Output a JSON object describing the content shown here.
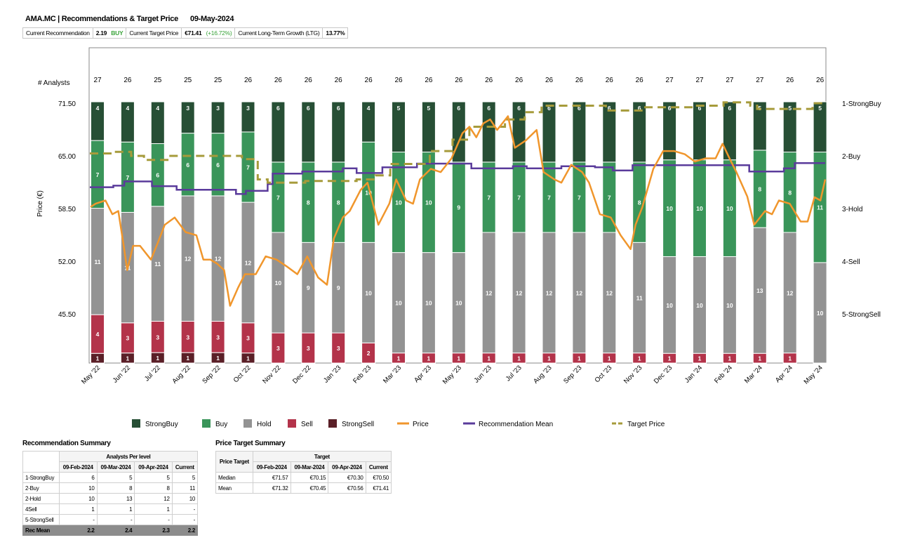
{
  "header": {
    "title": "AMA.MC | Recommendations & Target Price",
    "date": "09-May-2024",
    "current_recommendation_label": "Current Recommendation",
    "current_recommendation_value": "2.19",
    "current_recommendation_text": "BUY",
    "current_target_label": "Current Target Price",
    "current_target_value": "€71.41",
    "current_target_change": "(+16.72%)",
    "ltg_label": "Current Long-Term Growth (LTG)",
    "ltg_value": "13.77%"
  },
  "chart_data": {
    "type": "bar",
    "stacked": "100%",
    "analysts_label": "# Analysts",
    "ylabel": "Price (€)",
    "y_ticks": [
      "71.50",
      "65.00",
      "58.50",
      "52.00",
      "45.50"
    ],
    "ylim_price": [
      39.35,
      78.35
    ],
    "right_ticks": [
      "1-StrongBuy",
      "2-Buy",
      "3-Hold",
      "4-Sell",
      "5-StrongSell"
    ],
    "categories": [
      "May '22",
      "Jun '22",
      "Jul '22",
      "Aug '22",
      "Sep '22",
      "Oct '22",
      "Nov '22",
      "Dec '22",
      "Jan '23",
      "Feb '23",
      "Mar '23",
      "Apr '23",
      "May '23",
      "Jun '23",
      "Jul '23",
      "Aug '23",
      "Sep '23",
      "Oct '23",
      "Nov '23",
      "Dec '23",
      "Jan '24",
      "Feb '24",
      "Mar '24",
      "Apr '24",
      "May '24"
    ],
    "analyst_counts": [
      27,
      26,
      25,
      25,
      25,
      26,
      26,
      26,
      26,
      26,
      26,
      26,
      26,
      26,
      26,
      26,
      26,
      26,
      26,
      27,
      27,
      27,
      27,
      26,
      26
    ],
    "series": [
      {
        "name": "StrongBuy",
        "color": "#274f35",
        "values": [
          4,
          4,
          4,
          3,
          3,
          3,
          6,
          6,
          6,
          4,
          5,
          5,
          6,
          6,
          6,
          6,
          6,
          6,
          6,
          6,
          6,
          6,
          5,
          5,
          5
        ]
      },
      {
        "name": "Buy",
        "color": "#3a955a",
        "values": [
          7,
          7,
          6,
          6,
          6,
          7,
          7,
          8,
          8,
          10,
          10,
          10,
          9,
          7,
          7,
          7,
          7,
          7,
          8,
          10,
          10,
          10,
          8,
          8,
          11
        ]
      },
      {
        "name": "Hold",
        "color": "#939393",
        "values": [
          11,
          11,
          11,
          12,
          12,
          12,
          10,
          9,
          9,
          10,
          10,
          10,
          10,
          12,
          12,
          12,
          12,
          12,
          11,
          10,
          10,
          10,
          13,
          12,
          10
        ]
      },
      {
        "name": "Sell",
        "color": "#b3334a",
        "values": [
          4,
          3,
          3,
          3,
          3,
          3,
          3,
          3,
          3,
          2,
          1,
          1,
          1,
          1,
          1,
          1,
          1,
          1,
          1,
          1,
          1,
          1,
          1,
          1,
          0
        ]
      },
      {
        "name": "StrongSell",
        "color": "#5a1f27",
        "values": [
          1,
          1,
          1,
          1,
          1,
          1,
          0,
          0,
          0,
          0,
          0,
          0,
          0,
          0,
          0,
          0,
          0,
          0,
          0,
          0,
          0,
          0,
          0,
          0,
          0
        ]
      }
    ],
    "lines": {
      "price": {
        "name": "Price",
        "color": "#f0962c",
        "points": [
          [
            "2022-05-02",
            58.7
          ],
          [
            "2022-05-07",
            59.1
          ],
          [
            "2022-05-17",
            59.5
          ],
          [
            "2022-05-24",
            57.8
          ],
          [
            "2022-05-30",
            58.2
          ],
          [
            "2022-06-04",
            54.3
          ],
          [
            "2022-06-08",
            50.9
          ],
          [
            "2022-06-14",
            53.9
          ],
          [
            "2022-06-21",
            53.9
          ],
          [
            "2022-07-02",
            52.2
          ],
          [
            "2022-07-09",
            54.3
          ],
          [
            "2022-07-16",
            56.5
          ],
          [
            "2022-07-26",
            57.4
          ],
          [
            "2022-08-06",
            55.6
          ],
          [
            "2022-08-17",
            55.2
          ],
          [
            "2022-08-24",
            52.2
          ],
          [
            "2022-08-31",
            52.2
          ],
          [
            "2022-09-07",
            51.7
          ],
          [
            "2022-09-14",
            50.9
          ],
          [
            "2022-09-20",
            46.5
          ],
          [
            "2022-09-28",
            48.7
          ],
          [
            "2022-10-05",
            50.4
          ],
          [
            "2022-10-16",
            50.4
          ],
          [
            "2022-10-26",
            52.6
          ],
          [
            "2022-11-06",
            52.2
          ],
          [
            "2022-11-17",
            51.3
          ],
          [
            "2022-11-27",
            50.4
          ],
          [
            "2022-12-07",
            52.6
          ],
          [
            "2022-12-18",
            50.0
          ],
          [
            "2022-12-27",
            49.1
          ],
          [
            "2023-01-03",
            54.8
          ],
          [
            "2023-01-12",
            57.4
          ],
          [
            "2023-01-19",
            58.2
          ],
          [
            "2023-01-30",
            60.8
          ],
          [
            "2023-02-06",
            61.7
          ],
          [
            "2023-02-17",
            56.5
          ],
          [
            "2023-02-28",
            59.1
          ],
          [
            "2023-03-07",
            62.1
          ],
          [
            "2023-03-17",
            59.5
          ],
          [
            "2023-03-24",
            59.1
          ],
          [
            "2023-03-31",
            62.1
          ],
          [
            "2023-04-11",
            63.4
          ],
          [
            "2023-04-21",
            63.0
          ],
          [
            "2023-05-02",
            64.7
          ],
          [
            "2023-05-13",
            67.8
          ],
          [
            "2023-05-20",
            68.6
          ],
          [
            "2023-05-27",
            67.3
          ],
          [
            "2023-06-03",
            69.0
          ],
          [
            "2023-06-10",
            69.5
          ],
          [
            "2023-06-17",
            68.2
          ],
          [
            "2023-06-28",
            69.9
          ],
          [
            "2023-07-05",
            66.0
          ],
          [
            "2023-07-16",
            66.9
          ],
          [
            "2023-07-27",
            68.2
          ],
          [
            "2023-08-03",
            63.0
          ],
          [
            "2023-08-14",
            62.1
          ],
          [
            "2023-08-21",
            61.7
          ],
          [
            "2023-08-31",
            63.9
          ],
          [
            "2023-09-11",
            63.0
          ],
          [
            "2023-09-18",
            61.7
          ],
          [
            "2023-09-29",
            57.8
          ],
          [
            "2023-10-10",
            57.4
          ],
          [
            "2023-10-20",
            55.2
          ],
          [
            "2023-10-30",
            53.5
          ],
          [
            "2023-11-04",
            56.5
          ],
          [
            "2023-11-11",
            58.7
          ],
          [
            "2023-11-22",
            63.4
          ],
          [
            "2023-12-02",
            65.6
          ],
          [
            "2023-12-13",
            65.6
          ],
          [
            "2023-12-24",
            65.2
          ],
          [
            "2024-01-03",
            64.3
          ],
          [
            "2024-01-14",
            64.7
          ],
          [
            "2024-01-24",
            64.7
          ],
          [
            "2024-01-31",
            66.5
          ],
          [
            "2024-02-07",
            64.7
          ],
          [
            "2024-02-14",
            63.0
          ],
          [
            "2024-02-25",
            60.0
          ],
          [
            "2024-03-03",
            56.5
          ],
          [
            "2024-03-14",
            58.2
          ],
          [
            "2024-03-21",
            57.8
          ],
          [
            "2024-03-28",
            59.5
          ],
          [
            "2024-04-08",
            59.1
          ],
          [
            "2024-04-19",
            56.9
          ],
          [
            "2024-04-26",
            56.9
          ],
          [
            "2024-05-03",
            59.9
          ],
          [
            "2024-05-09",
            59.5
          ],
          [
            "2024-05-15",
            62.1
          ]
        ]
      },
      "recommendation_mean": {
        "name": "Recommendation Mean",
        "color": "#5a3b9b",
        "points": [
          [
            "2022-05-01",
            2.6
          ],
          [
            "2022-05-25",
            2.57
          ],
          [
            "2022-06-05",
            2.49
          ],
          [
            "2022-07-03",
            2.58
          ],
          [
            "2022-07-28",
            2.65
          ],
          [
            "2022-09-26",
            2.73
          ],
          [
            "2022-10-06",
            2.67
          ],
          [
            "2022-10-28",
            2.54
          ],
          [
            "2022-11-02",
            2.34
          ],
          [
            "2022-12-02",
            2.3
          ],
          [
            "2023-01-12",
            2.24
          ],
          [
            "2023-01-26",
            2.33
          ],
          [
            "2023-02-21",
            2.22
          ],
          [
            "2023-03-28",
            2.15
          ],
          [
            "2023-05-22",
            2.24
          ],
          [
            "2023-07-03",
            2.2
          ],
          [
            "2023-07-17",
            2.24
          ],
          [
            "2023-08-21",
            2.2
          ],
          [
            "2023-09-24",
            2.22
          ],
          [
            "2023-10-12",
            2.28
          ],
          [
            "2023-11-01",
            2.18
          ],
          [
            "2024-02-27",
            2.3
          ],
          [
            "2024-04-02",
            2.24
          ],
          [
            "2024-04-13",
            2.14
          ],
          [
            "2024-05-15",
            2.14
          ]
        ]
      },
      "target_price": {
        "name": "Target Price",
        "color": "#a69b3b",
        "points": [
          [
            "2022-05-01",
            65.3
          ],
          [
            "2022-05-25",
            65.5
          ],
          [
            "2022-06-12",
            65.0
          ],
          [
            "2022-06-25",
            64.5
          ],
          [
            "2022-07-20",
            65.0
          ],
          [
            "2022-09-20",
            65.0
          ],
          [
            "2022-10-02",
            64.6
          ],
          [
            "2022-10-18",
            62.1
          ],
          [
            "2022-10-28",
            61.7
          ],
          [
            "2022-12-05",
            61.9
          ],
          [
            "2023-01-26",
            62.1
          ],
          [
            "2023-02-14",
            62.6
          ],
          [
            "2023-03-01",
            64.0
          ],
          [
            "2023-04-10",
            65.6
          ],
          [
            "2023-05-03",
            67.0
          ],
          [
            "2023-05-20",
            68.6
          ],
          [
            "2023-06-25",
            69.5
          ],
          [
            "2023-07-15",
            70.4
          ],
          [
            "2023-08-01",
            71.2
          ],
          [
            "2023-09-28",
            71.2
          ],
          [
            "2023-10-05",
            70.6
          ],
          [
            "2023-11-12",
            71.0
          ],
          [
            "2024-01-02",
            71.2
          ],
          [
            "2024-02-01",
            71.6
          ],
          [
            "2024-02-28",
            71.2
          ],
          [
            "2024-03-06",
            70.8
          ],
          [
            "2024-04-20",
            70.8
          ],
          [
            "2024-05-01",
            71.5
          ],
          [
            "2024-05-15",
            71.5
          ]
        ]
      }
    },
    "legend": [
      "StrongBuy",
      "Buy",
      "Hold",
      "Sell",
      "StrongSell",
      "Price",
      "Recommendation Mean",
      "Target Price"
    ],
    "legend_position": "bottom"
  },
  "rec_summary": {
    "title": "Recommendation Summary",
    "group_header": "Analysts Per level",
    "columns": [
      "09-Feb-2024",
      "09-Mar-2024",
      "09-Apr-2024",
      "Current"
    ],
    "rows": [
      {
        "label": "1-StrongBuy",
        "values": [
          "6",
          "5",
          "5",
          "5"
        ]
      },
      {
        "label": "2-Buy",
        "values": [
          "10",
          "8",
          "8",
          "11"
        ]
      },
      {
        "label": "2-Hold",
        "values": [
          "10",
          "13",
          "12",
          "10"
        ]
      },
      {
        "label": "4Sell",
        "values": [
          "1",
          "1",
          "1",
          "-"
        ]
      },
      {
        "label": "5-StrongSell",
        "values": [
          "-",
          "-",
          "-",
          "-"
        ]
      }
    ],
    "mean_row": {
      "label": "Rec Mean",
      "values": [
        "2.2",
        "2.4",
        "2.3",
        "2.2"
      ]
    }
  },
  "pt_summary": {
    "title": "Price Target Summary",
    "corner": "Price Target",
    "group_header": "Target",
    "columns": [
      "09-Feb-2024",
      "09-Mar-2024",
      "09-Apr-2024",
      "Current"
    ],
    "rows": [
      {
        "label": "Median",
        "values": [
          "€71.57",
          "€70.15",
          "€70.30",
          "€70.50"
        ]
      },
      {
        "label": "Mean",
        "values": [
          "€71.32",
          "€70.45",
          "€70.56",
          "€71.41"
        ]
      }
    ]
  }
}
